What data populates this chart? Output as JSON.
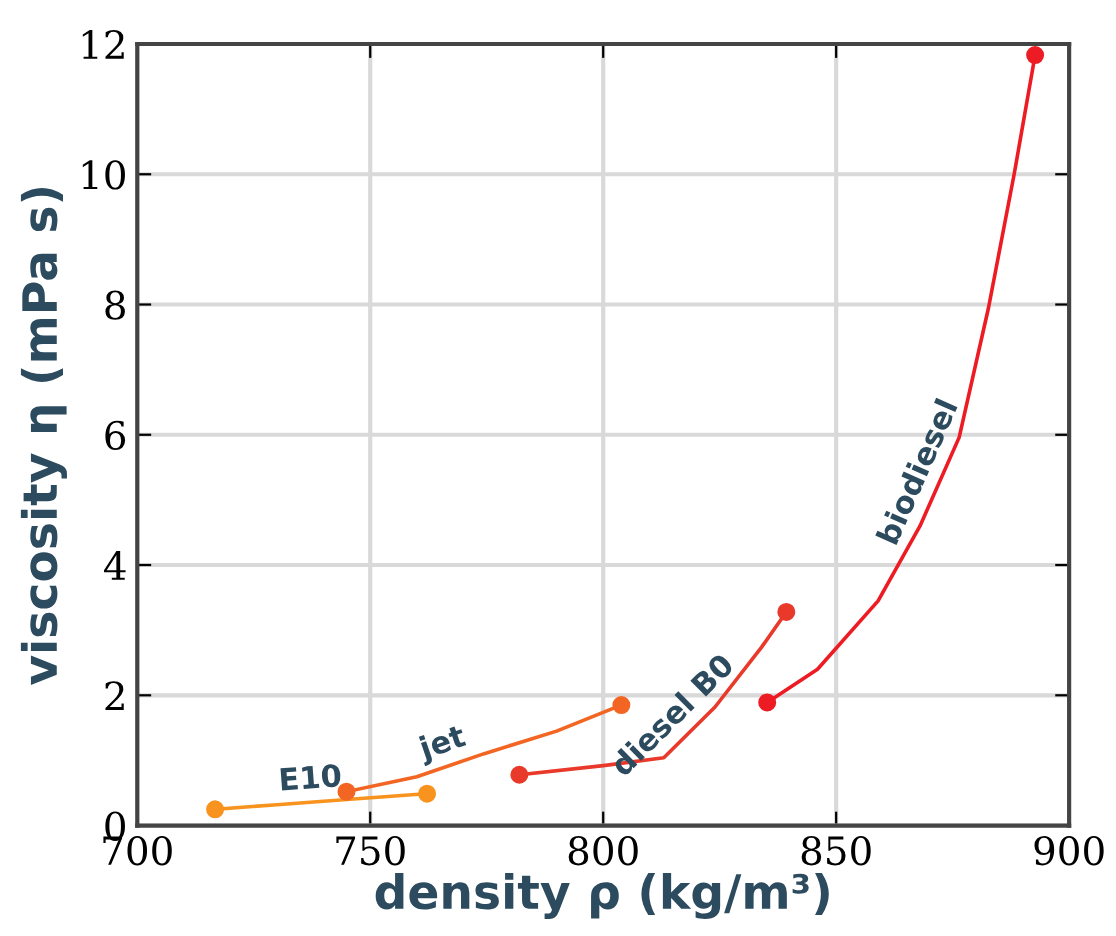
{
  "chart_data": {
    "type": "line",
    "xlabel": "density ρ (kg/m³)",
    "ylabel": "viscosity η (mPa s)",
    "xlim": [
      700,
      900
    ],
    "xticks": [
      700,
      750,
      800,
      850,
      900
    ],
    "ylim": [
      0,
      12
    ],
    "yticks": [
      0,
      2,
      4,
      6,
      8,
      10,
      12
    ],
    "grid": true,
    "marker": "none",
    "line_style": "solid",
    "series": [
      {
        "name": "E10",
        "color": "#f7931e",
        "x": [
          716.7,
          730,
          745,
          762.2
        ],
        "values": [
          0.25,
          0.32,
          0.4,
          0.49
        ]
      },
      {
        "name": "jet",
        "color": "#f26522",
        "x": [
          744.9,
          760,
          774.3,
          790,
          803.9
        ],
        "values": [
          0.52,
          0.75,
          1.1,
          1.45,
          1.85
        ]
      },
      {
        "name": "diesel B0",
        "color": "#e8392a",
        "x": [
          782,
          800,
          813,
          824,
          834,
          839.3
        ],
        "values": [
          0.78,
          0.92,
          1.04,
          1.82,
          2.74,
          3.28
        ]
      },
      {
        "name": "biodiesel",
        "color": "#ed1c24",
        "x": [
          835.2,
          846,
          859,
          868,
          876.4,
          882.7,
          888.2,
          892.7
        ],
        "values": [
          1.89,
          2.4,
          3.45,
          4.6,
          5.96,
          7.95,
          10.0,
          11.83
        ]
      },
      {
        "type": "scatter",
        "marker": "circle",
        "color": "#f7931e",
        "x": [
          716.7,
          762.2
        ],
        "values": [
          0.25,
          0.49
        ]
      },
      {
        "type": "scatter",
        "marker": "circle",
        "color": "#f26522",
        "x": [
          744.9,
          803.9
        ],
        "values": [
          0.52,
          1.85
        ]
      },
      {
        "type": "scatter",
        "marker": "circle",
        "color": "#e8392a",
        "x": [
          782,
          839.3
        ],
        "values": [
          0.78,
          3.28
        ]
      },
      {
        "type": "scatter",
        "marker": "circle",
        "color": "#ed1c24",
        "x": [
          835.2,
          892.7
        ],
        "values": [
          1.89,
          11.83
        ]
      }
    ]
  }
}
